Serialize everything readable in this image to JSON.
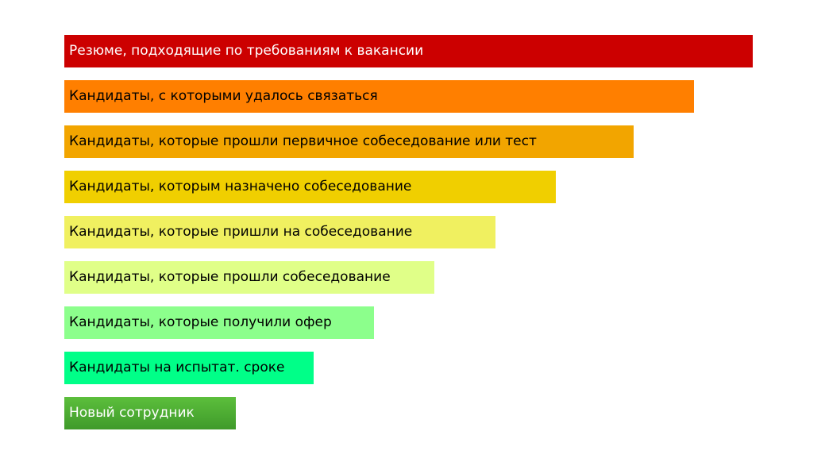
{
  "chart_data": {
    "type": "bar",
    "orientation": "horizontal",
    "categories": [
      "Резюме, подходящие по требованиям к вакансии",
      "Кандидаты, с которыми удалось связаться",
      "Кандидаты, которые прошли первичное собеседование или тест",
      "Кандидаты, которым назначено собеседование",
      "Кандидаты, которые пришли на собеседование",
      "Кандидаты, которые прошли собеседование",
      "Кандидаты, которые получили офер",
      "Кандидаты на испытат. сроке",
      "Новый сотрудник"
    ],
    "values": [
      100,
      91.5,
      82.7,
      71.4,
      62.6,
      53.8,
      45,
      36.2,
      24.9
    ],
    "colors": [
      "#cc0000",
      "#ff7f00",
      "#f2a500",
      "#f0cf00",
      "#f0f060",
      "#e0ff88",
      "#8cff8c",
      "#00ff88",
      "#4caf30"
    ],
    "label_colors": [
      "#ffffff",
      "#000000",
      "#000000",
      "#000000",
      "#000000",
      "#000000",
      "#000000",
      "#000000",
      "#ffffff"
    ],
    "grid": false,
    "legend": "none"
  }
}
